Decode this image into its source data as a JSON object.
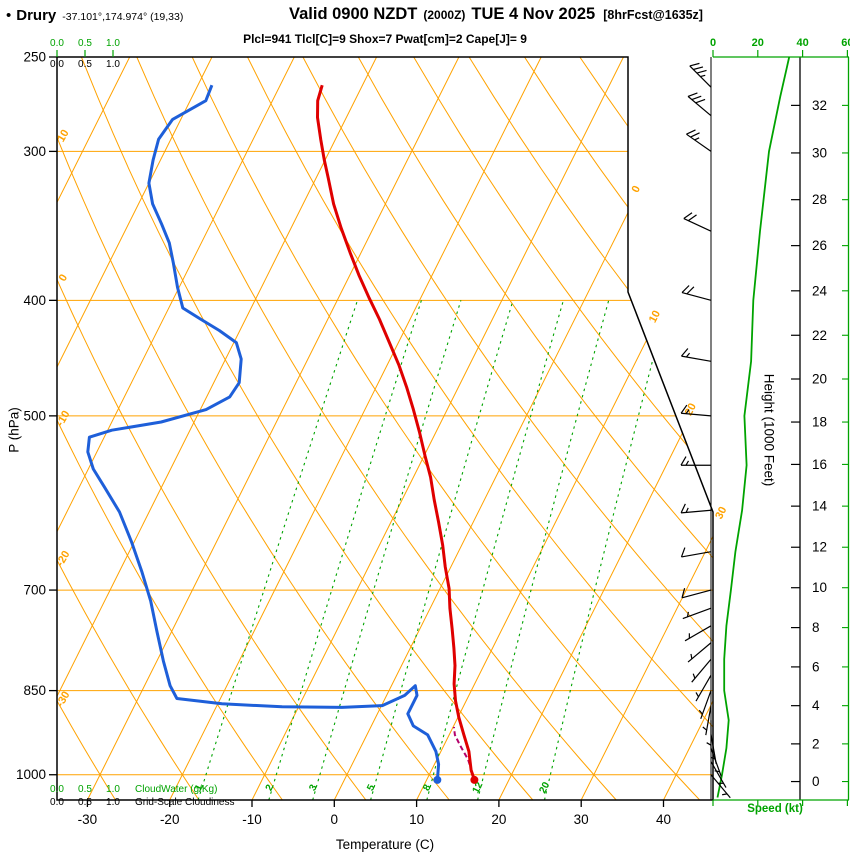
{
  "header": {
    "bullet": "•",
    "station": "Drury",
    "coords": "-37.101°,174.974° (19,33)",
    "valid_main": "Valid 0900 NZDT",
    "valid_z": "(2000Z)",
    "valid_date": "TUE 4 Nov 2025",
    "fcst": "[8hrFcst@1635z]",
    "indices": "Plcl=941 Tlcl[C]=9 Shox=7 Pwat[cm]=2 Cape[J]= 9"
  },
  "axes": {
    "temp_label": "Temperature (C)",
    "pressure_label": "P (hPa)",
    "height_label": "Height (1000 Feet)",
    "speed_label": "Speed (kt)"
  },
  "scales": {
    "values": [
      "0.0",
      "0.5",
      "1.0"
    ],
    "cloudwater_label": "CloudWater (g/Kg)",
    "cloudiness_label": "Grid-Scale Cloudiness"
  },
  "colors": {
    "orange": "#FFA200",
    "green": "#00A300",
    "red": "#DF0000",
    "blue": "#1E5FD9",
    "magenta": "#C4007E",
    "parcel": "#B4006A",
    "black": "#000000"
  },
  "chart_data": {
    "type": "line",
    "variant": "skew-t log-p atmospheric sounding",
    "x_axis": {
      "label": "Temperature (C)",
      "ticks": [
        -30,
        -20,
        -10,
        0,
        10,
        20,
        30,
        40
      ],
      "skew_deg": 45
    },
    "y_axis": {
      "label": "P (hPa)",
      "scale": "log",
      "range": [
        250,
        1050
      ],
      "ticks": [
        250,
        300,
        400,
        500,
        700,
        850,
        1000
      ]
    },
    "height_axis": {
      "label": "Height (1000 Feet)",
      "ticks": [
        0,
        2,
        4,
        6,
        8,
        10,
        12,
        14,
        16,
        18,
        20,
        22,
        24,
        26,
        28,
        30,
        32
      ]
    },
    "speed_axis": {
      "label": "Speed (kt)",
      "ticks": [
        0,
        20,
        40,
        60
      ],
      "max": 60
    },
    "series": [
      {
        "name": "temperature",
        "units": [
          "hPa",
          "C"
        ],
        "points": [
          [
            264,
            -44.9
          ],
          [
            272,
            -44.5
          ],
          [
            281,
            -43.5
          ],
          [
            293,
            -41.8
          ],
          [
            305,
            -40.1
          ],
          [
            316,
            -38.5
          ],
          [
            332,
            -36.3
          ],
          [
            348,
            -33.9
          ],
          [
            365,
            -31.3
          ],
          [
            381,
            -28.9
          ],
          [
            398,
            -26.3
          ],
          [
            415,
            -23.7
          ],
          [
            434,
            -21.1
          ],
          [
            453,
            -18.6
          ],
          [
            473,
            -16.3
          ],
          [
            494,
            -14.1
          ],
          [
            516,
            -12
          ],
          [
            540,
            -9.9
          ],
          [
            563,
            -7.9
          ],
          [
            588,
            -6.1
          ],
          [
            614,
            -4.2
          ],
          [
            642,
            -2.3
          ],
          [
            669,
            -0.7
          ],
          [
            698,
            1.1
          ],
          [
            725,
            2.4
          ],
          [
            754,
            3.9
          ],
          [
            783,
            5.3
          ],
          [
            810,
            6.5
          ],
          [
            839,
            7.5
          ],
          [
            867,
            8.7
          ],
          [
            895,
            10.1
          ],
          [
            926,
            11.8
          ],
          [
            956,
            13.4
          ],
          [
            991,
            14.8
          ],
          [
            1010,
            15.8
          ]
        ]
      },
      {
        "name": "dewpoint",
        "units": [
          "hPa",
          "C"
        ],
        "points": [
          [
            264,
            -58.3
          ],
          [
            272,
            -58.1
          ],
          [
            282,
            -61
          ],
          [
            293,
            -61.5
          ],
          [
            305,
            -60.9
          ],
          [
            319,
            -60
          ],
          [
            332,
            -58.3
          ],
          [
            345,
            -56
          ],
          [
            358,
            -53.9
          ],
          [
            372,
            -52.2
          ],
          [
            390,
            -50.2
          ],
          [
            406,
            -48.3
          ],
          [
            415,
            -45.4
          ],
          [
            424,
            -42.5
          ],
          [
            434,
            -39.7
          ],
          [
            448,
            -38.1
          ],
          [
            469,
            -36.9
          ],
          [
            482,
            -37.2
          ],
          [
            494,
            -39.3
          ],
          [
            506,
            -44
          ],
          [
            514,
            -49.5
          ],
          [
            521,
            -51.8
          ],
          [
            536,
            -51.1
          ],
          [
            554,
            -49.4
          ],
          [
            574,
            -46.9
          ],
          [
            602,
            -43.6
          ],
          [
            638,
            -40.3
          ],
          [
            675,
            -37.3
          ],
          [
            715,
            -34.4
          ],
          [
            758,
            -31.8
          ],
          [
            803,
            -29.2
          ],
          [
            842,
            -26.9
          ],
          [
            863,
            -25.3
          ],
          [
            872,
            -19.5
          ],
          [
            877,
            -12
          ],
          [
            878,
            -4.7
          ],
          [
            875,
            0.1
          ],
          [
            858,
            2.2
          ],
          [
            842,
            2.9
          ],
          [
            858,
            3.7
          ],
          [
            889,
            3.7
          ],
          [
            910,
            5.1
          ],
          [
            926,
            7.4
          ],
          [
            956,
            9.4
          ],
          [
            980,
            10.5
          ],
          [
            1010,
            11.3
          ]
        ]
      },
      {
        "name": "parcel",
        "units": [
          "hPa",
          "C"
        ],
        "style": "dashed",
        "points": [
          [
            1010,
            15.8
          ],
          [
            971,
            13.8
          ],
          [
            944,
            11.9
          ],
          [
            926,
            10.7
          ],
          [
            912,
            10.1
          ]
        ]
      },
      {
        "name": "wind_speed",
        "units": [
          "hPa",
          "kt"
        ],
        "points": [
          [
            1045,
            2
          ],
          [
            1000,
            4
          ],
          [
            950,
            6
          ],
          [
            900,
            7
          ],
          [
            850,
            5
          ],
          [
            800,
            5
          ],
          [
            750,
            6
          ],
          [
            700,
            8
          ],
          [
            650,
            10
          ],
          [
            600,
            13
          ],
          [
            550,
            15
          ],
          [
            500,
            14
          ],
          [
            450,
            17
          ],
          [
            400,
            18
          ],
          [
            350,
            21
          ],
          [
            300,
            25
          ],
          [
            270,
            30
          ],
          [
            255,
            33
          ],
          [
            250,
            34
          ]
        ]
      }
    ],
    "wind_barbs": [
      [
        1000,
        140,
        4
      ],
      [
        975,
        150,
        5
      ],
      [
        950,
        160,
        6
      ],
      [
        925,
        170,
        7
      ],
      [
        900,
        180,
        7
      ],
      [
        875,
        190,
        6
      ],
      [
        850,
        200,
        5
      ],
      [
        825,
        210,
        5
      ],
      [
        800,
        220,
        5
      ],
      [
        775,
        230,
        5
      ],
      [
        750,
        240,
        6
      ],
      [
        725,
        250,
        7
      ],
      [
        700,
        255,
        8
      ],
      [
        650,
        260,
        10
      ],
      [
        600,
        265,
        13
      ],
      [
        550,
        270,
        15
      ],
      [
        500,
        275,
        14
      ],
      [
        450,
        280,
        17
      ],
      [
        400,
        285,
        18
      ],
      [
        350,
        295,
        21
      ],
      [
        300,
        305,
        25
      ],
      [
        280,
        310,
        30
      ],
      [
        265,
        315,
        34
      ]
    ],
    "background": {
      "isotherms": [
        -80,
        -70,
        -60,
        -50,
        -40,
        -30,
        -20,
        -10,
        0,
        10,
        20,
        30,
        40
      ],
      "dry_adiabats": [
        -30,
        -20,
        -10,
        0,
        10,
        20,
        30,
        40,
        50,
        60,
        70,
        80,
        90,
        100,
        110,
        120,
        130,
        140
      ],
      "mixing_ratio_lines": [
        1,
        2,
        3,
        5,
        8,
        12,
        20
      ],
      "pressure_lines": [
        300,
        400,
        500,
        700,
        850,
        1000
      ],
      "adiabat_edge_labels": [
        10,
        0,
        -10,
        -20,
        -30
      ],
      "isotherm_edge_labels": [
        0,
        10,
        20,
        30
      ]
    }
  }
}
